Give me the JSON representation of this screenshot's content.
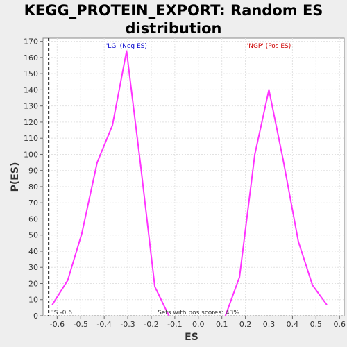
{
  "title_line1": "KEGG_PROTEIN_EXPORT: Random ES",
  "title_line2": "distribution",
  "chart_data": {
    "type": "line",
    "xlabel": "ES",
    "ylabel": "P(ES)",
    "xlim": [
      -0.66,
      0.62
    ],
    "ylim": [
      0,
      172
    ],
    "x_ticks": [
      -0.6,
      -0.5,
      -0.4,
      -0.3,
      -0.2,
      -0.1,
      0.0,
      0.1,
      0.2,
      0.3,
      0.4,
      0.5,
      0.6
    ],
    "x_tick_labels": [
      "-0.6",
      "-0.5",
      "-0.4",
      "-0.3",
      "-0.2",
      "-0.1",
      "0.0",
      "0.1",
      "0.2",
      "0.3",
      "0.4",
      "0.5",
      "0.6"
    ],
    "y_ticks": [
      0,
      10,
      20,
      30,
      40,
      50,
      60,
      70,
      80,
      90,
      100,
      110,
      120,
      130,
      140,
      150,
      160,
      170
    ],
    "y_tick_labels": [
      "0",
      "10",
      "20",
      "30",
      "40",
      "50",
      "60",
      "70",
      "80",
      "90",
      "100",
      "110",
      "120",
      "130",
      "140",
      "150",
      "160",
      "170"
    ],
    "grid": true,
    "series": [
      {
        "color": "#ff33ff",
        "x": [
          -0.62,
          -0.555,
          -0.495,
          -0.43,
          -0.365,
          -0.305,
          -0.245,
          -0.185,
          -0.125
        ],
        "y": [
          7,
          22,
          51,
          95,
          118,
          164,
          93,
          18,
          0
        ]
      },
      {
        "color": "#ff33ff",
        "x": [
          0.115,
          0.175,
          0.24,
          0.3,
          0.36,
          0.425,
          0.485,
          0.545
        ],
        "y": [
          0,
          24,
          100,
          140,
          97,
          46,
          19,
          7
        ]
      }
    ],
    "es_marker": {
      "x": -0.636,
      "label": "ES -0.6"
    },
    "annotations": {
      "neg": {
        "text": "'LG' (Neg ES)",
        "color": "#0000cc",
        "x": -0.305
      },
      "pos": {
        "text": "'NGP' (Pos ES)",
        "color": "#cc0000",
        "x": 0.3
      },
      "footer": "Sets with pos scores: 43%"
    }
  }
}
